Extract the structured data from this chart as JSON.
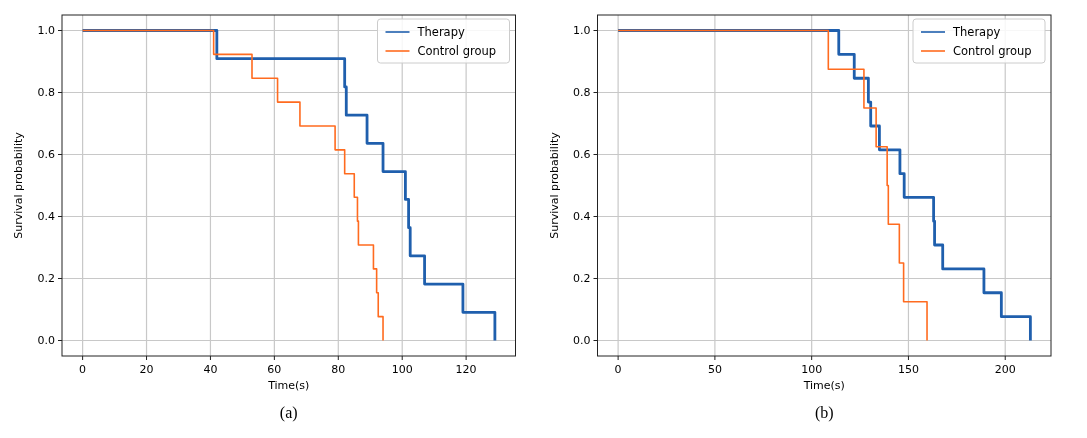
{
  "chart_data": [
    {
      "type": "step",
      "title": "(a)",
      "xlabel": "Time(s)",
      "ylabel": "Survival probability",
      "xlim": [
        -6.45,
        135.45
      ],
      "ylim": [
        -0.05,
        1.05
      ],
      "xticks": [
        0,
        20,
        40,
        60,
        80,
        100,
        120
      ],
      "yticks": [
        {
          "value": 0,
          "label": "0.0"
        },
        {
          "value": 0.2,
          "label": "0.2"
        },
        {
          "value": 0.4,
          "label": "0.4"
        },
        {
          "value": 0.6,
          "label": "0.6"
        },
        {
          "value": 0.8,
          "label": "0.8"
        },
        {
          "value": 1,
          "label": "1.0"
        }
      ],
      "grid": true,
      "legend": "top right",
      "series": [
        {
          "name": "Therapy",
          "color": "#1f5fad",
          "x": [
            0,
            42,
            82,
            82.5,
            89,
            94,
            101,
            102,
            102.5,
            107,
            119,
            129
          ],
          "values": [
            1,
            0.909,
            0.818,
            0.727,
            0.636,
            0.545,
            0.455,
            0.364,
            0.273,
            0.182,
            0.091,
            0
          ]
        },
        {
          "name": "Control group",
          "color": "#ff6b1f",
          "x": [
            0,
            41,
            53,
            61,
            68,
            79,
            82,
            85,
            86,
            86.3,
            91,
            92,
            92.5,
            94
          ],
          "values": [
            1,
            0.923,
            0.846,
            0.769,
            0.692,
            0.615,
            0.538,
            0.462,
            0.385,
            0.308,
            0.231,
            0.154,
            0.077,
            0
          ]
        }
      ]
    },
    {
      "type": "step",
      "title": "(b)",
      "xlabel": "Time(s)",
      "ylabel": "Survival probability",
      "xlim": [
        -10.65,
        223.65
      ],
      "ylim": [
        -0.05,
        1.05
      ],
      "xticks": [
        0,
        50,
        100,
        150,
        200
      ],
      "yticks": [
        {
          "value": 0,
          "label": "0.0"
        },
        {
          "value": 0.2,
          "label": "0.2"
        },
        {
          "value": 0.4,
          "label": "0.4"
        },
        {
          "value": 0.6,
          "label": "0.6"
        },
        {
          "value": 0.8,
          "label": "0.8"
        },
        {
          "value": 1,
          "label": "1.0"
        }
      ],
      "grid": true,
      "legend": "top right",
      "series": [
        {
          "name": "Therapy",
          "color": "#1f5fad",
          "x": [
            0,
            114,
            122,
            129.3,
            130.5,
            135,
            145.6,
            147.8,
            163,
            163.5,
            167.7,
            189,
            198,
            213
          ],
          "values": [
            1,
            0.923,
            0.846,
            0.769,
            0.692,
            0.615,
            0.538,
            0.462,
            0.385,
            0.308,
            0.231,
            0.154,
            0.077,
            0
          ]
        },
        {
          "name": "Control group",
          "color": "#ff6b1f",
          "x": [
            0,
            108.6,
            127,
            133.3,
            139,
            139.6,
            145.3,
            147.5,
            159.6
          ],
          "values": [
            1,
            0.875,
            0.75,
            0.625,
            0.5,
            0.375,
            0.25,
            0.125,
            0
          ]
        }
      ]
    }
  ]
}
